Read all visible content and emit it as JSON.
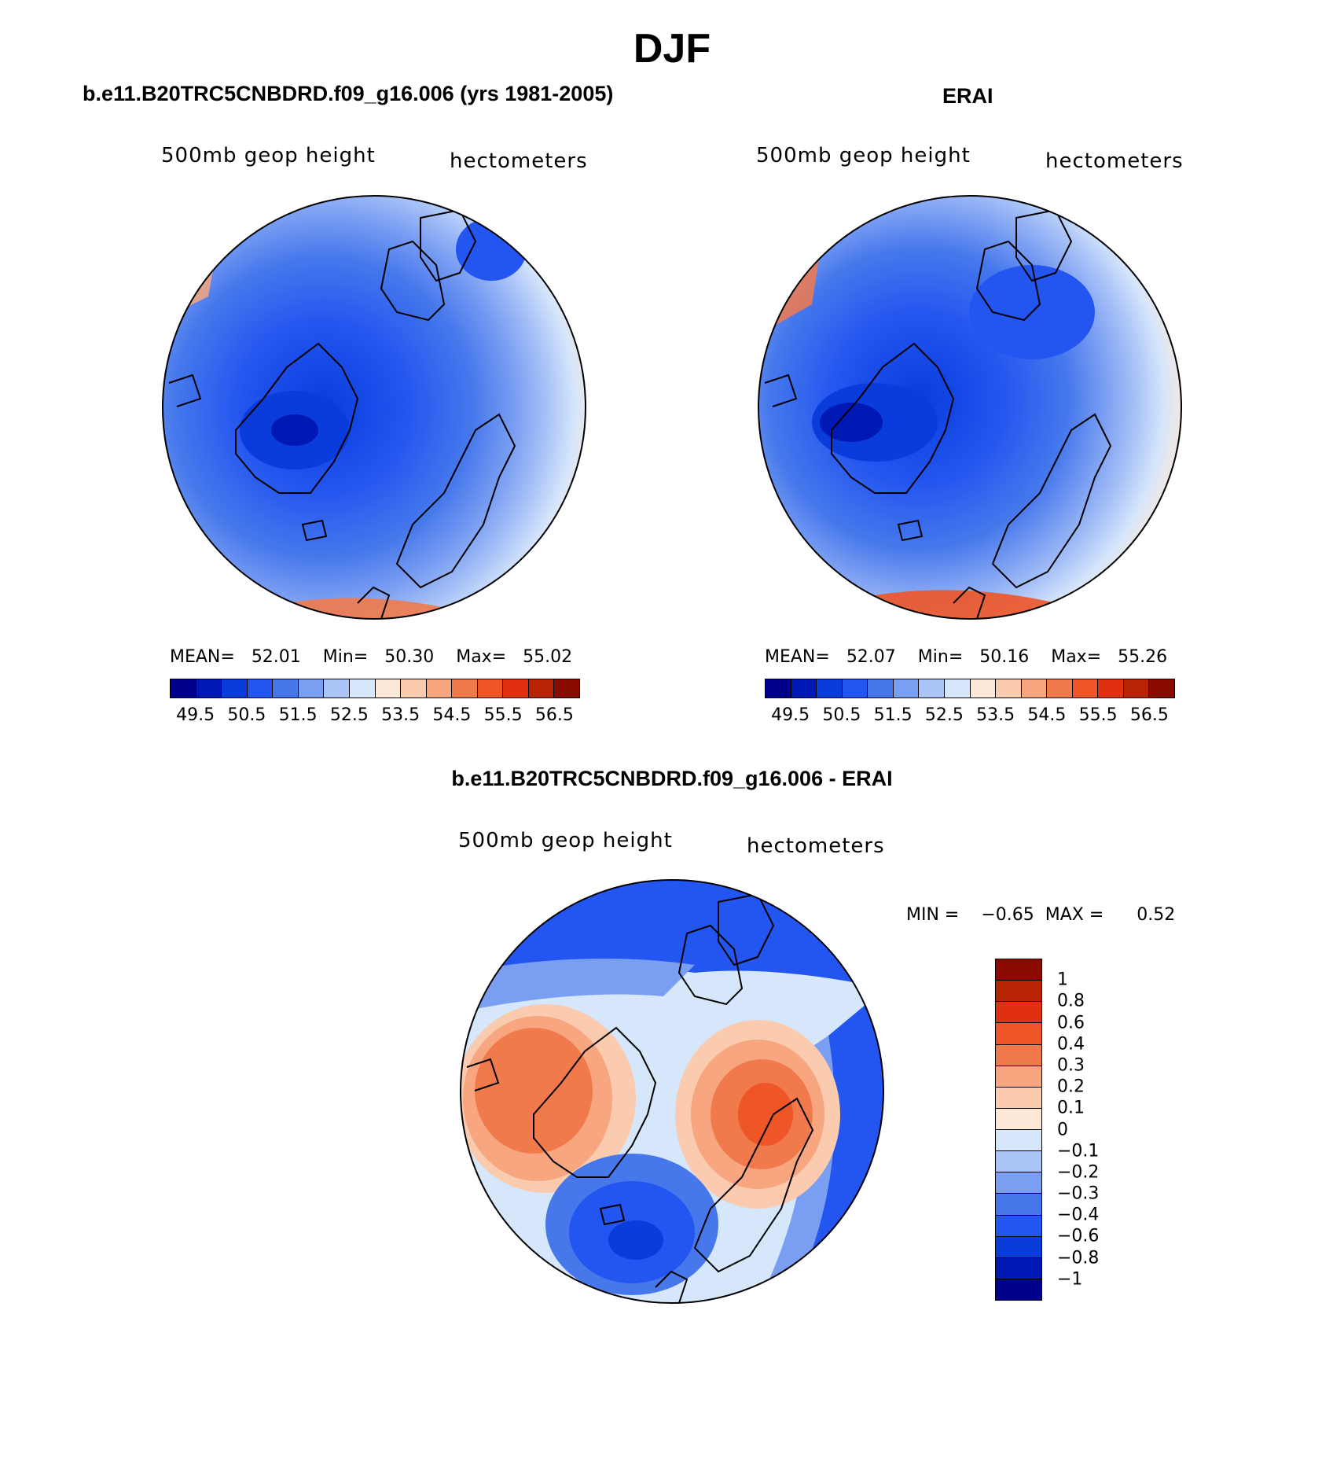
{
  "title": "DJF",
  "colors": {
    "abs_scale": [
      "#00008c",
      "#0019b4",
      "#0a3cdc",
      "#2355f0",
      "#4678ec",
      "#7a9ef2",
      "#aac4f7",
      "#d6e6fb",
      "#fde8d8",
      "#fbcbb0",
      "#f7a67f",
      "#f17a4d",
      "#ee5527",
      "#e03010",
      "#b82505",
      "#8a0a00"
    ],
    "diff_scale": [
      "#00008c",
      "#0019b4",
      "#0a3cdc",
      "#2355f0",
      "#4678ec",
      "#7a9ef2",
      "#aac4f7",
      "#d6e6fb",
      "#fde8d8",
      "#fbcbb0",
      "#f7a67f",
      "#f17a4d",
      "#ee5527",
      "#e03010",
      "#b82505",
      "#8a0a00"
    ]
  },
  "panels": [
    {
      "title": "b.e11.B20TRC5CNBDRD.f09_g16.006 (yrs 1981-2005)",
      "variable": "500mb geop height",
      "units": "hectometers",
      "mean_label": "MEAN=",
      "mean": "52.01",
      "min_label": "Min=",
      "min": "50.30",
      "max_label": "Max=",
      "max": "55.02"
    },
    {
      "title": "ERAI",
      "variable": "500mb geop height",
      "units": "hectometers",
      "mean_label": "MEAN=",
      "mean": "52.07",
      "min_label": "Min=",
      "min": "50.16",
      "max_label": "Max=",
      "max": "55.26"
    }
  ],
  "abs_ticks": [
    "49.5",
    "50.5",
    "51.5",
    "52.5",
    "53.5",
    "54.5",
    "55.5",
    "56.5"
  ],
  "diff_panel": {
    "title": "b.e11.B20TRC5CNBDRD.f09_g16.006 - ERAI",
    "variable": "500mb geop height",
    "units": "hectometers",
    "min_label": "MIN =",
    "min": "−0.65",
    "max_label": "MAX =",
    "max": "0.52",
    "ticks": [
      "1",
      "0.8",
      "0.6",
      "0.4",
      "0.3",
      "0.2",
      "0.1",
      "0",
      "−0.1",
      "−0.2",
      "−0.3",
      "−0.4",
      "−0.6",
      "−0.8",
      "−1"
    ]
  }
}
